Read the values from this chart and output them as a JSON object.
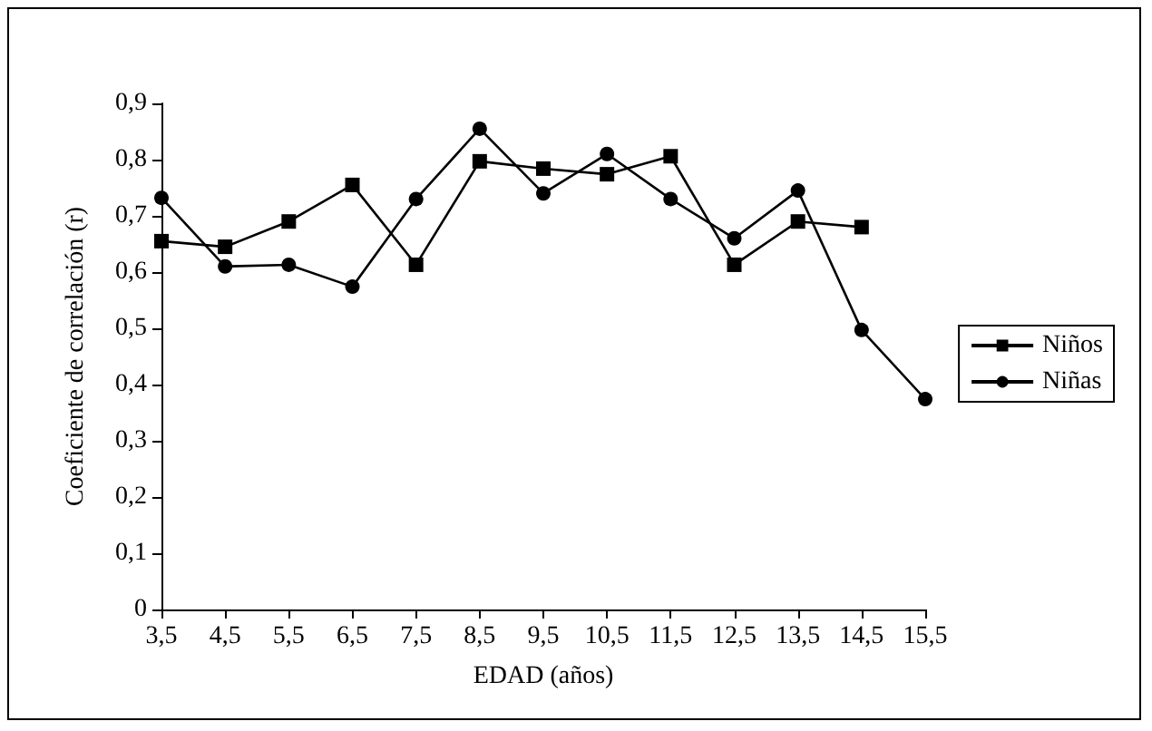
{
  "chart_data": {
    "type": "line",
    "xlabel": "EDAD (años)",
    "ylabel": "Coeficiente de correlación (r)",
    "categories": [
      "3,5",
      "4,5",
      "5,5",
      "6,5",
      "7,5",
      "8,5",
      "9,5",
      "10,5",
      "11,5",
      "12,5",
      "13,5",
      "14,5",
      "15,5"
    ],
    "series": [
      {
        "name": "Niños",
        "color": "#000000",
        "marker": "square",
        "values": [
          0.655,
          0.645,
          0.69,
          0.755,
          0.613,
          0.797,
          0.784,
          0.774,
          0.806,
          0.613,
          0.69,
          0.68,
          null
        ]
      },
      {
        "name": "Niñas",
        "color": "#000000",
        "marker": "circle",
        "values": [
          0.732,
          0.61,
          0.613,
          0.574,
          0.73,
          0.855,
          0.74,
          0.81,
          0.73,
          0.66,
          0.745,
          0.497,
          0.374
        ]
      }
    ],
    "ylim": [
      0,
      0.9
    ],
    "yticks": [
      0,
      {
        "value": 0.1,
        "label": "0,1"
      },
      {
        "value": 0.2,
        "label": "0,2"
      },
      {
        "value": 0.3,
        "label": "0,3"
      },
      {
        "value": 0.4,
        "label": "0,4"
      },
      {
        "value": 0.5,
        "label": "0,5"
      },
      {
        "value": 0.6,
        "label": "0,6"
      },
      {
        "value": 0.7,
        "label": "0,7"
      },
      {
        "value": 0.8,
        "label": "0,8"
      },
      {
        "value": 0.9,
        "label": "0,9"
      }
    ],
    "grid": false,
    "legend": "right",
    "line_style": "solid"
  }
}
